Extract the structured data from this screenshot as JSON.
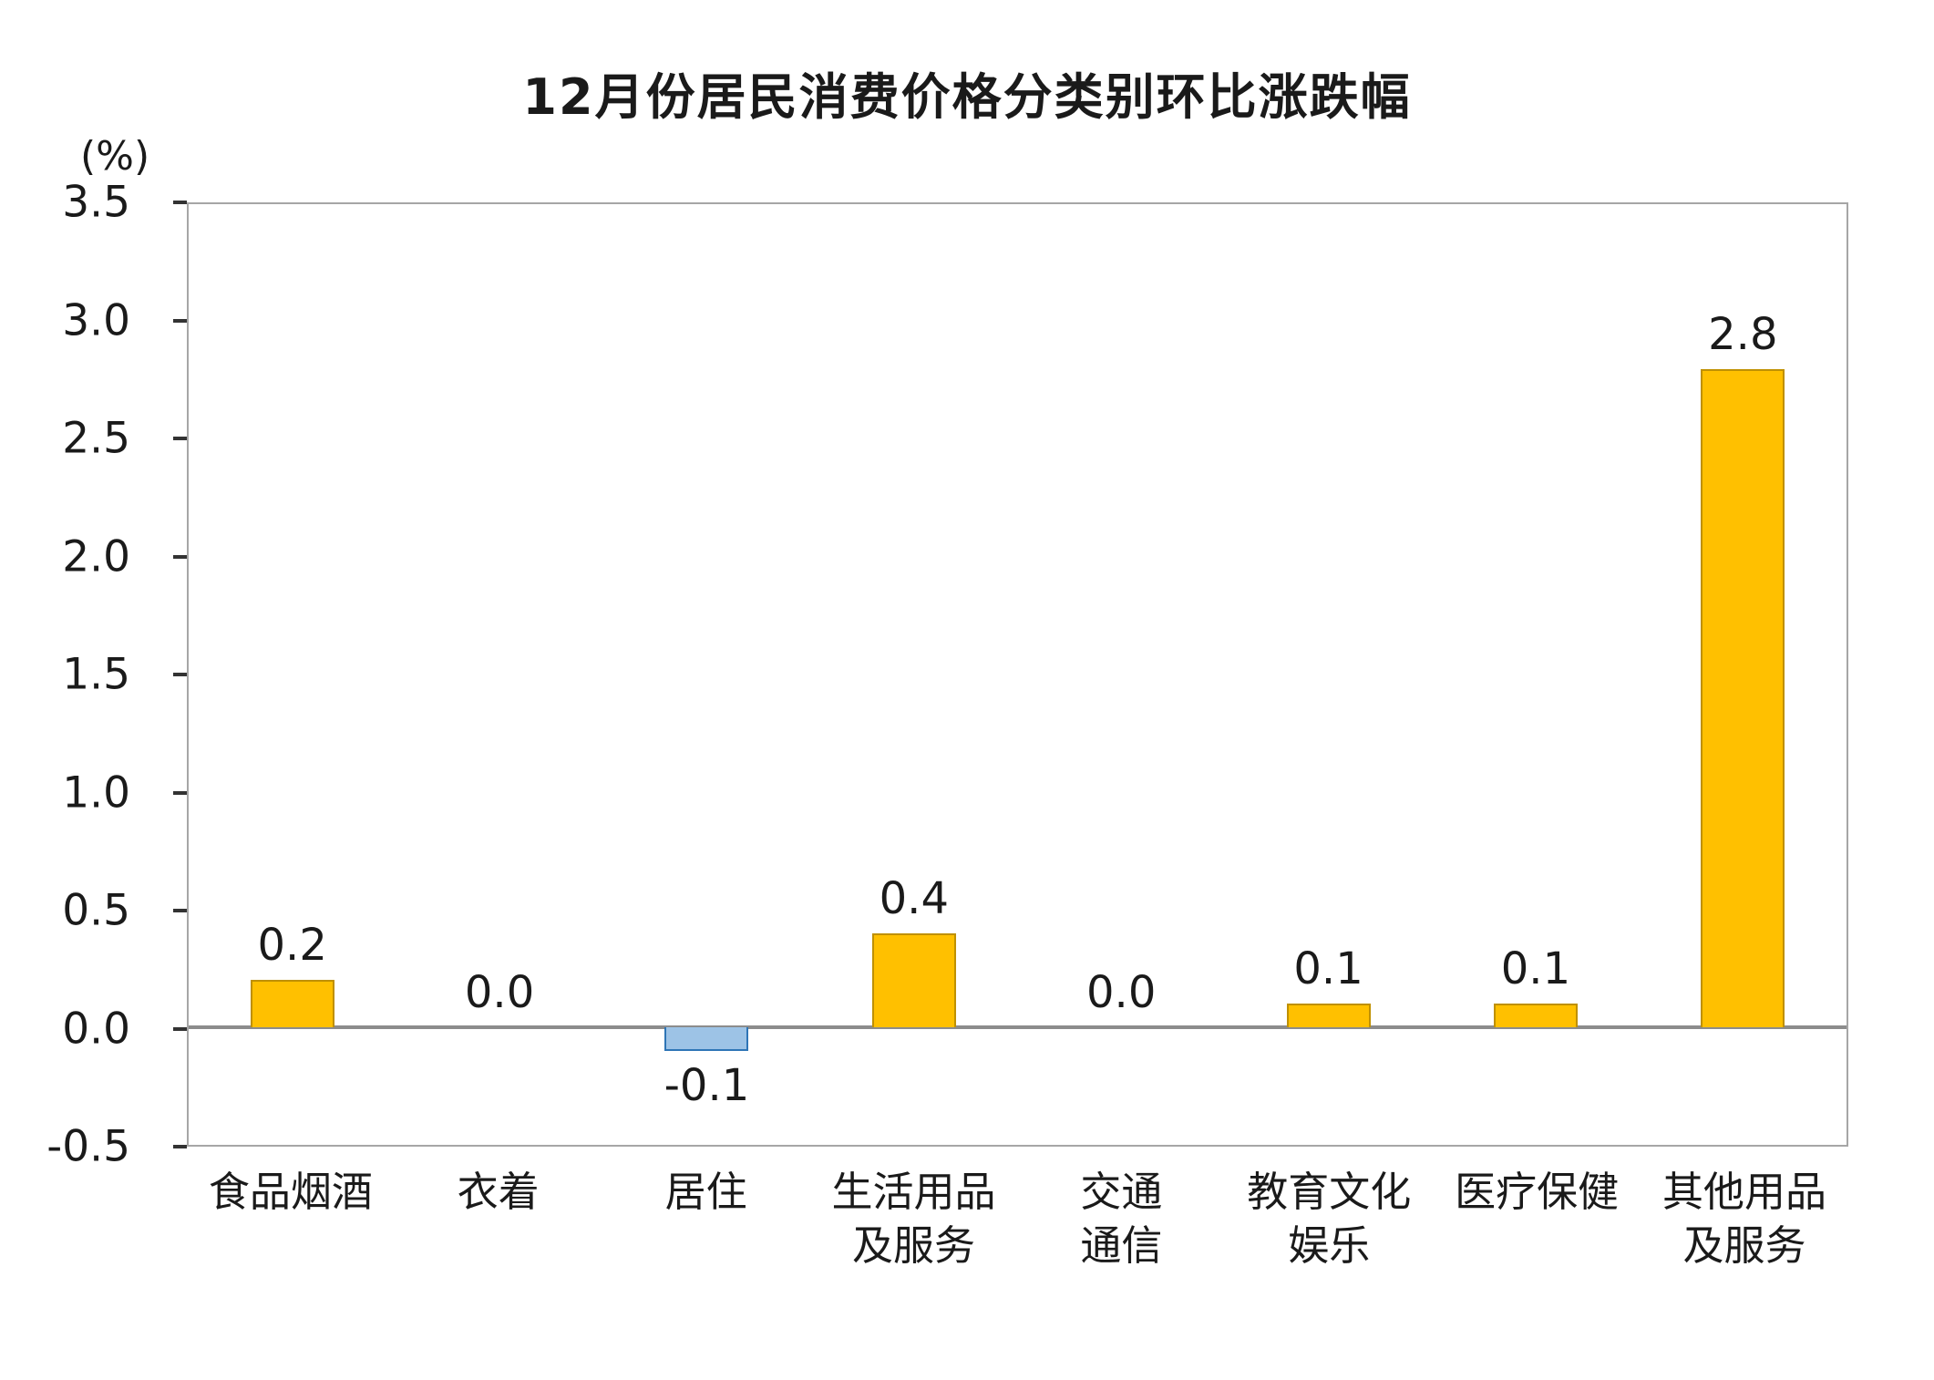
{
  "chart_data": {
    "type": "bar",
    "title": "12月份居民消费价格分类别环比涨跌幅",
    "ylabel": "(%)",
    "categories": [
      "食品烟酒",
      "衣着",
      "居住",
      "生活用品\n及服务",
      "交通\n通信",
      "教育文化\n娱乐",
      "医疗保健",
      "其他用品\n及服务"
    ],
    "values": [
      0.2,
      0.0,
      -0.1,
      0.4,
      0.0,
      0.1,
      0.1,
      2.8
    ],
    "value_labels": [
      "0.2",
      "0.0",
      "-0.1",
      "0.4",
      "0.0",
      "0.1",
      "0.1",
      "2.8"
    ],
    "ylim": [
      -0.5,
      3.5
    ],
    "yticks": [
      3.5,
      3.0,
      2.5,
      2.0,
      1.5,
      1.0,
      0.5,
      0.0,
      -0.5
    ],
    "ytick_labels": [
      "3.5",
      "3.0",
      "2.5",
      "2.0",
      "1.5",
      "1.0",
      "0.5",
      "0.0",
      "-0.5"
    ],
    "grid": false,
    "legend": "none",
    "colors": {
      "positive_fill": "#FFC000",
      "positive_border": "#BF9000",
      "negative_fill": "#9DC3E6",
      "negative_border": "#2E75B6",
      "zero_line": "#8C8C8C",
      "plot_border": "#A6A6A6"
    }
  }
}
